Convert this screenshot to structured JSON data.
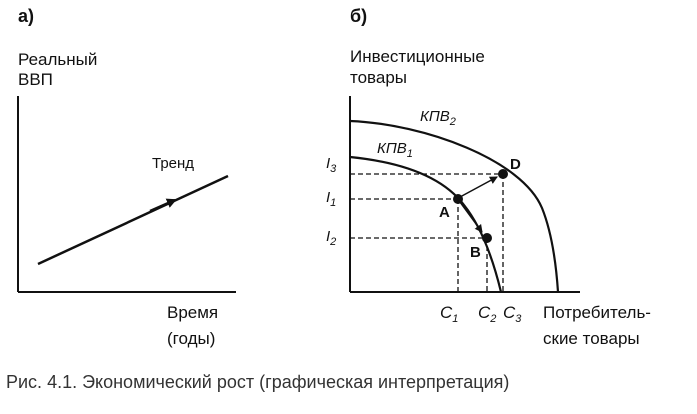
{
  "panel_a": {
    "label": "а)",
    "y_title_line1": "Реальный",
    "y_title_line2": "ВВП",
    "x_title_line1": "Время",
    "x_title_line2": "(годы)",
    "trend_label": "Тренд"
  },
  "panel_b": {
    "label": "б)",
    "y_title_line1": "Инвестиционные",
    "y_title_line2": "товары",
    "x_title_line1": "Потребитель-",
    "x_title_line2": "ские товары",
    "curve2_base": "КПВ",
    "curve2_sub": "2",
    "curve1_base": "КПВ",
    "curve1_sub": "1",
    "i3_base": "I",
    "i3_sub": "3",
    "i1_base": "I",
    "i1_sub": "1",
    "i2_base": "I",
    "i2_sub": "2",
    "c1_base": "C",
    "c1_sub": "1",
    "c2_base": "C",
    "c2_sub": "2",
    "c3_base": "C",
    "c3_sub": "3",
    "point_a": "A",
    "point_b": "B",
    "point_d": "D"
  },
  "caption": "Рис. 4.1. Экономический рост (графическая интерпретация)"
}
